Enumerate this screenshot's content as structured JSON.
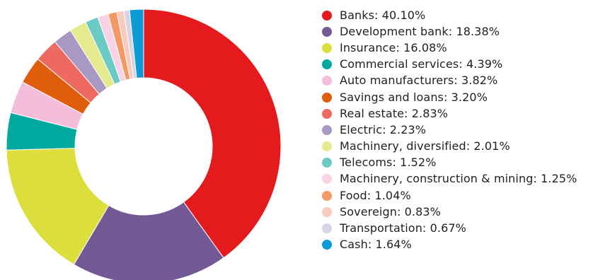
{
  "chart_data": {
    "type": "pie",
    "title": "",
    "legend_position": "right",
    "slices": [
      {
        "label": "Banks: 40.10%",
        "name": "Banks",
        "value": 40.1,
        "color": "#e41a1c"
      },
      {
        "label": "Development bank: 18.38%",
        "name": "Development bank",
        "value": 18.38,
        "color": "#735a97"
      },
      {
        "label": "Insurance: 16.08%",
        "name": "Insurance",
        "value": 16.08,
        "color": "#dcde3b"
      },
      {
        "label": "Commercial services: 4.39%",
        "name": "Commercial services",
        "value": 4.39,
        "color": "#00a99d"
      },
      {
        "label": "Auto manufacturers: 3.82%",
        "name": "Auto manufacturers",
        "value": 3.82,
        "color": "#f4bdd9"
      },
      {
        "label": "Savings and loans: 3.20%",
        "name": "Savings and loans",
        "value": 3.2,
        "color": "#e05d0b"
      },
      {
        "label": "Real estate: 2.83%",
        "name": "Real estate",
        "value": 2.83,
        "color": "#ee6a61"
      },
      {
        "label": "Electric: 2.23%",
        "name": "Electric",
        "value": 2.23,
        "color": "#a898c4"
      },
      {
        "label": "Machinery, diversified: 2.01%",
        "name": "Machinery, diversified",
        "value": 2.01,
        "color": "#e6ea8f"
      },
      {
        "label": "Telecoms: 1.52%",
        "name": "Telecoms",
        "value": 1.52,
        "color": "#6bcbc4"
      },
      {
        "label": "Machinery, construction & mining: 1.25%",
        "name": "Machinery, construction & mining",
        "value": 1.25,
        "color": "#f9d3e5"
      },
      {
        "label": "Food: 1.04%",
        "name": "Food",
        "value": 1.04,
        "color": "#f39a64"
      },
      {
        "label": "Sovereign: 0.83%",
        "name": "Sovereign",
        "value": 0.83,
        "color": "#f9cbbf"
      },
      {
        "label": "Transportation: 0.67%",
        "name": "Transportation",
        "value": 0.67,
        "color": "#d6d3e6"
      },
      {
        "label": "Cash: 1.64%",
        "name": "Cash",
        "value": 1.64,
        "color": "#0c9ad8"
      }
    ]
  }
}
